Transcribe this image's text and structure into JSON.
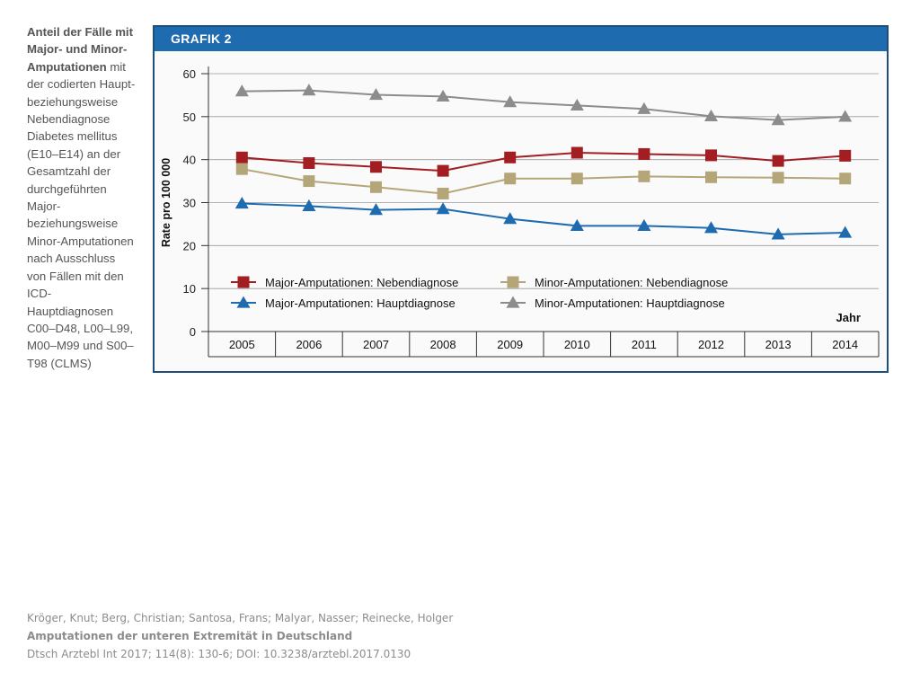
{
  "caption": {
    "bold": "Anteil der Fälle mit Major- und Minor-Amputationen",
    "text": "mit der codierten Haupt- beziehungsweise Nebendiagnose Diabetes mellitus (E10–E14) an der Gesamtzahl der durchgeführten Major- beziehungsweise Minor-Amputationen nach Ausschluss von Fällen mit den ICD-Hauptdiagnosen C00–D48, L00–L99, M00–M99 und S00–T98 (CLMS)"
  },
  "header": {
    "title": "GRAFIK 2"
  },
  "chart_data": {
    "type": "line",
    "title": "GRAFIK 2",
    "xlabel": "Jahr",
    "ylabel": "Rate pro 100 000",
    "ylim": [
      0,
      60
    ],
    "yticks": [
      0,
      10,
      20,
      30,
      40,
      50,
      60
    ],
    "x": [
      "2005",
      "2006",
      "2007",
      "2008",
      "2009",
      "2010",
      "2011",
      "2012",
      "2013",
      "2014"
    ],
    "grid": true,
    "series": [
      {
        "name": "Major-Amputationen: Nebendiagnose",
        "color": "#a31e22",
        "marker": "square",
        "values": [
          40.5,
          39.2,
          38.3,
          37.4,
          40.5,
          41.6,
          41.3,
          41.0,
          39.7,
          40.9
        ]
      },
      {
        "name": "Minor-Amputationen: Nebendiagnose",
        "color": "#b5a67a",
        "marker": "square",
        "values": [
          37.8,
          35.0,
          33.6,
          32.1,
          35.6,
          35.6,
          36.1,
          35.9,
          35.8,
          35.6
        ]
      },
      {
        "name": "Major-Amputationen: Hauptdiagnose",
        "color": "#1f6bb0",
        "marker": "triangle",
        "values": [
          29.8,
          29.2,
          28.3,
          28.5,
          26.2,
          24.6,
          24.6,
          24.1,
          22.6,
          23.0
        ]
      },
      {
        "name": "Minor-Amputationen: Hauptdiagnose",
        "color": "#8c8c8c",
        "marker": "triangle",
        "values": [
          55.9,
          56.1,
          55.1,
          54.7,
          53.4,
          52.6,
          51.8,
          50.1,
          49.2,
          50.0
        ]
      }
    ],
    "legend_position": "bottom-center"
  },
  "citation": {
    "authors": "Kröger, Knut; Berg, Christian; Santosa, Frans; Malyar, Nasser; Reinecke, Holger",
    "title": "Amputationen der unteren Extremität in Deutschland",
    "journal": "Dtsch Arztebl Int 2017; 114(8): 130-6; DOI: 10.3238/arztebl.2017.0130"
  }
}
